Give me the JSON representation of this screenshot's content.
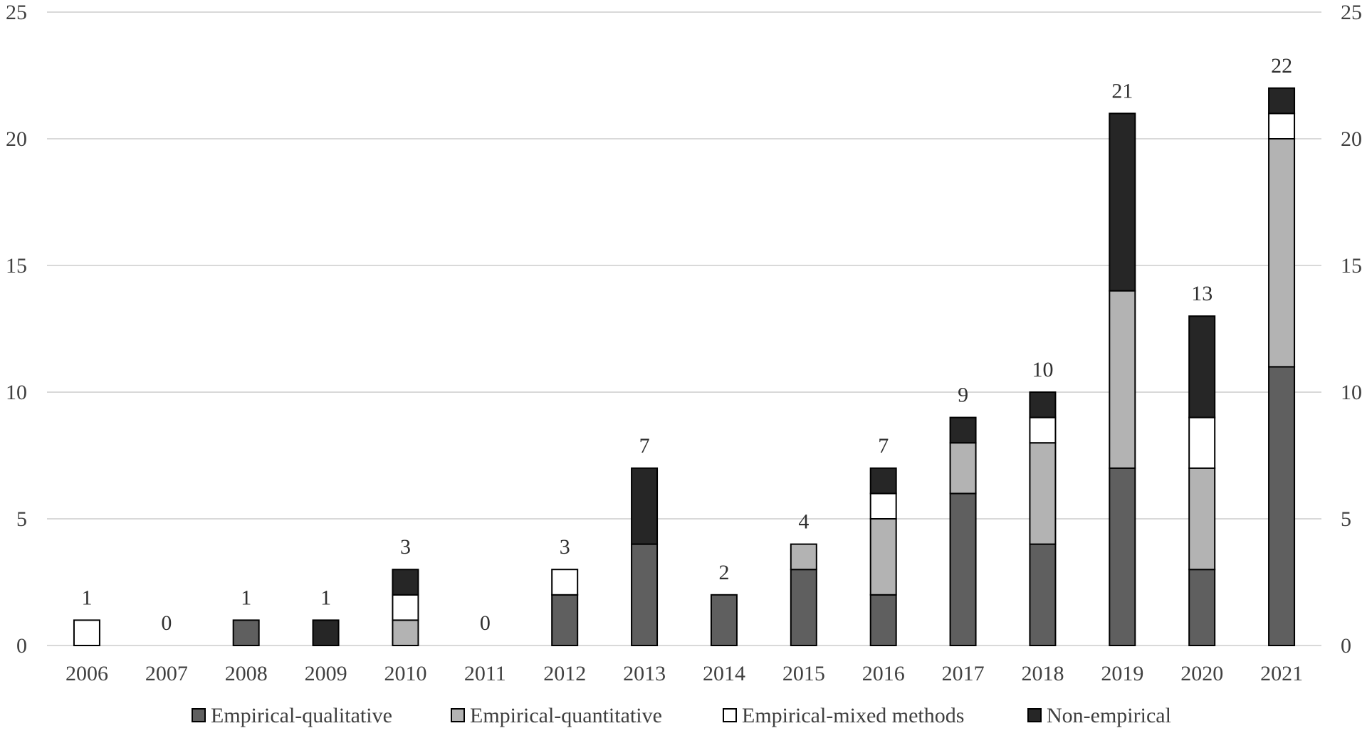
{
  "chart_data": {
    "type": "bar",
    "stacked": true,
    "title": "",
    "xlabel": "",
    "ylabel": "",
    "categories": [
      "2006",
      "2007",
      "2008",
      "2009",
      "2010",
      "2011",
      "2012",
      "2013",
      "2014",
      "2015",
      "2016",
      "2017",
      "2018",
      "2019",
      "2020",
      "2021"
    ],
    "series": [
      {
        "name": "Empirical-qualitative",
        "color": "#5f5f5f",
        "values": [
          0,
          0,
          1,
          0,
          0,
          0,
          2,
          4,
          2,
          3,
          2,
          6,
          4,
          7,
          3,
          11
        ]
      },
      {
        "name": "Empirical-quantitative",
        "color": "#b3b3b3",
        "values": [
          0,
          0,
          0,
          0,
          1,
          0,
          0,
          0,
          0,
          1,
          3,
          2,
          4,
          7,
          4,
          9
        ]
      },
      {
        "name": "Empirical-mixed methods",
        "color": "#ffffff",
        "values": [
          1,
          0,
          0,
          0,
          1,
          0,
          1,
          0,
          0,
          0,
          1,
          0,
          1,
          0,
          2,
          1
        ]
      },
      {
        "name": "Non-empirical",
        "color": "#262626",
        "values": [
          0,
          0,
          0,
          1,
          1,
          0,
          0,
          3,
          0,
          0,
          1,
          1,
          1,
          7,
          4,
          1
        ]
      }
    ],
    "totals": [
      1,
      0,
      1,
      1,
      3,
      0,
      3,
      7,
      2,
      4,
      7,
      9,
      10,
      21,
      13,
      22
    ],
    "ylim": [
      0,
      25
    ],
    "yticks": [
      0,
      5,
      10,
      15,
      20,
      25
    ],
    "secondary_yaxis": true,
    "grid": true,
    "legend_position": "bottom"
  }
}
